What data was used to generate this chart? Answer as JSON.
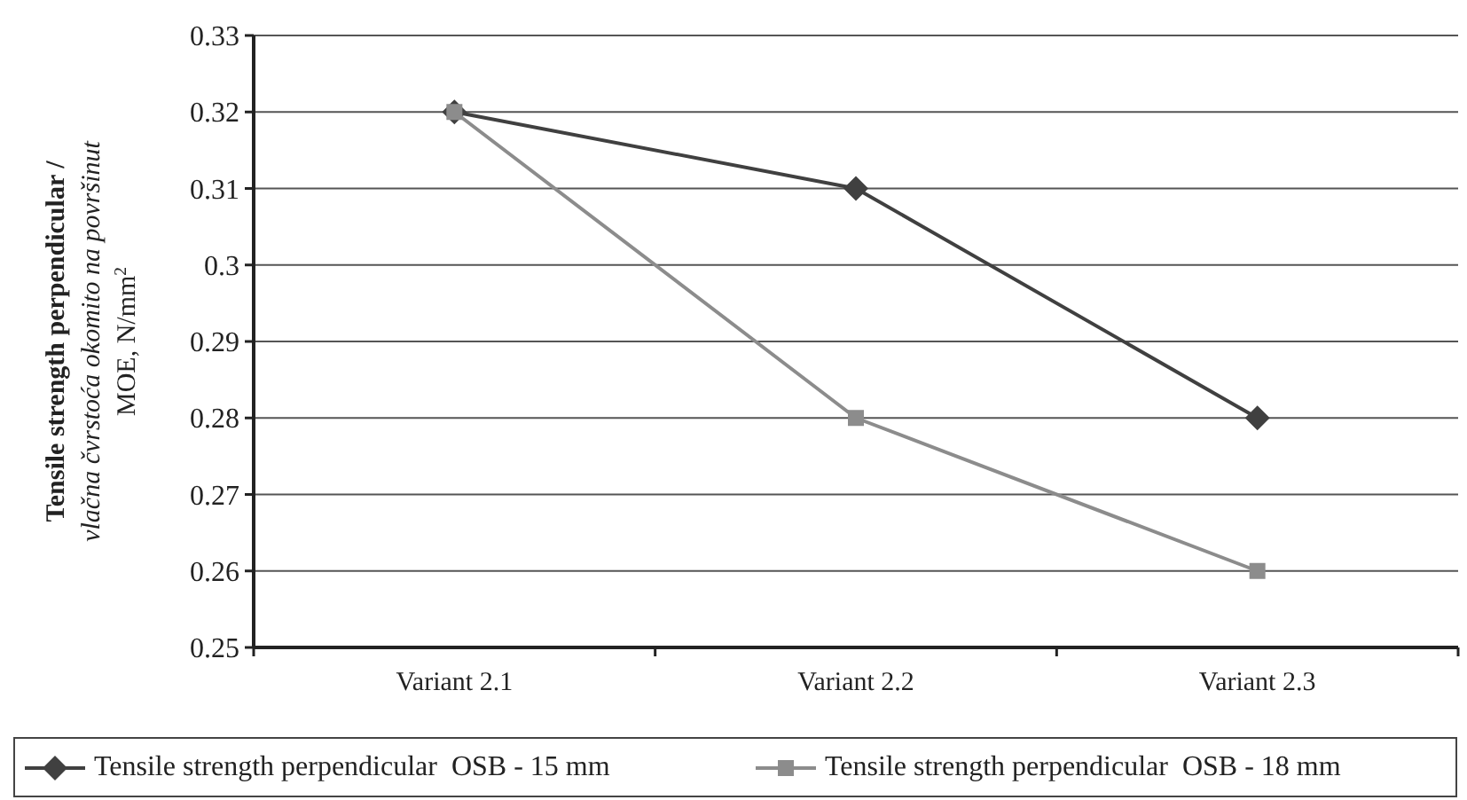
{
  "chart_data": {
    "type": "line",
    "ylabel": "Tensile strength perpendicular /\nvlačna čvrstoća okomito na površinut\nMOE, N/mm$^{2}$",
    "categories": [
      "Variant 2.1",
      "Variant 2.2",
      "Variant 2.3"
    ],
    "series": [
      {
        "name": "Tensile strength perpendicular  OSB - 15 mm",
        "color": "#404040",
        "values": [
          0.32,
          0.31,
          0.28
        ],
        "marker": "diamond"
      },
      {
        "name": "Tensile strength perpendicular  OSB - 18 mm",
        "color": "#8c8c8c",
        "values": [
          0.32,
          0.28,
          0.26
        ],
        "marker": "square"
      }
    ],
    "ylim": [
      0.25,
      0.33
    ],
    "yticks": [
      0.25,
      0.26,
      0.27,
      0.28,
      0.29,
      0.3,
      0.31,
      0.32,
      0.33
    ],
    "grid": "y",
    "legend": "bottom"
  }
}
